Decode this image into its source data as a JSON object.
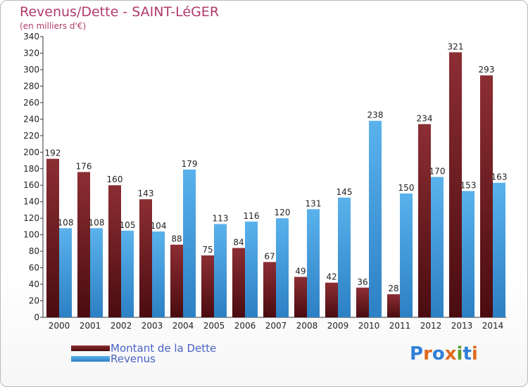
{
  "chart_data": {
    "type": "bar",
    "title": "Revenus/Dette - SAINT-LéGER",
    "subtitle": "(en milliers d'€)",
    "categories": [
      "2000",
      "2001",
      "2002",
      "2003",
      "2004",
      "2005",
      "2006",
      "2007",
      "2008",
      "2009",
      "2010",
      "2011",
      "2012",
      "2013",
      "2014"
    ],
    "series": [
      {
        "name": "Montant de la Dette",
        "color": "#7a1f24",
        "values": [
          192,
          176,
          160,
          143,
          88,
          75,
          84,
          67,
          49,
          42,
          36,
          28,
          234,
          321,
          293
        ]
      },
      {
        "name": "Revenus",
        "color": "#3a9ee0",
        "values": [
          108,
          108,
          105,
          104,
          179,
          113,
          116,
          120,
          131,
          145,
          238,
          150,
          170,
          153,
          163
        ]
      }
    ],
    "ylim": [
      0,
      340
    ],
    "yticks": [
      0,
      20,
      40,
      60,
      80,
      100,
      120,
      140,
      160,
      180,
      200,
      220,
      240,
      260,
      280,
      300,
      320,
      340
    ],
    "grid": false,
    "legend_position": "bottom-left"
  },
  "logo": {
    "text": "Proxiti",
    "letters": [
      "P",
      "r",
      "o",
      "x",
      "i",
      "t",
      "i"
    ],
    "colors": [
      "#2f7fd6",
      "#e06a1e",
      "#2f7fd6",
      "#e06a1e",
      "#5a9e2f",
      "#2f7fd6",
      "#e06a1e"
    ]
  }
}
